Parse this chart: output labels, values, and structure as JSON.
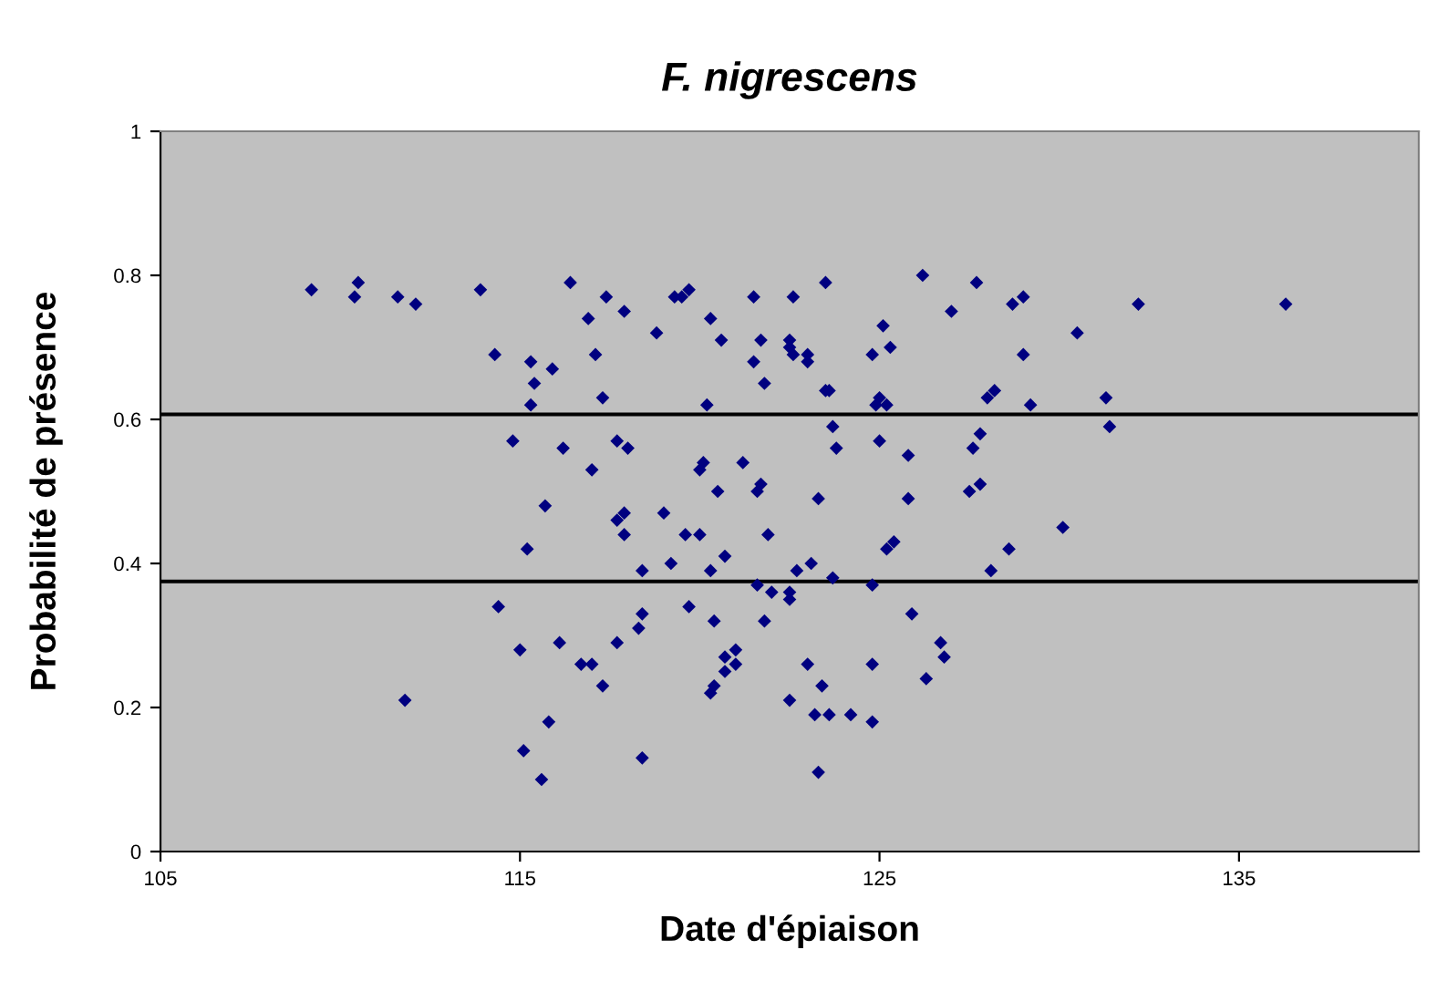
{
  "chart_data": {
    "type": "scatter",
    "title": "F. nigrescens",
    "xlabel": "Date d'épiaison",
    "ylabel": "Probabilité de présence",
    "xlim": [
      105,
      140
    ],
    "xticks": [
      105,
      115,
      125,
      135
    ],
    "ylim": [
      0,
      1
    ],
    "yticks": [
      0,
      0.2,
      0.4,
      0.6,
      0.8,
      1
    ],
    "grid": false,
    "legend": false,
    "marker": "diamond",
    "ref_lines": [
      {
        "axis": "y",
        "value": 0.607,
        "color": "#000000"
      },
      {
        "axis": "y",
        "value": 0.375,
        "color": "#000000"
      }
    ],
    "series": [
      {
        "color": "#000080",
        "x": [
          109.2,
          110.5,
          110.4,
          111.6,
          112.1,
          113.9,
          114.3,
          115.3,
          115.4,
          115.3,
          114.8,
          115.2,
          114.4,
          115.0,
          111.8,
          115.1,
          116.4,
          117.4,
          116.9,
          117.9,
          119.3,
          119.5,
          119.7,
          120.3,
          120.6,
          118.8,
          117.1,
          115.9,
          117.3,
          120.2,
          116.2,
          117.7,
          118.0,
          117.0,
          120.1,
          120.0,
          121.2,
          120.5,
          115.7,
          117.7,
          117.9,
          117.9,
          119.0,
          119.6,
          120.0,
          118.4,
          119.2,
          120.3,
          120.7,
          116.1,
          118.4,
          118.3,
          119.7,
          120.4,
          117.7,
          116.7,
          117.0,
          117.3,
          121.0,
          120.7,
          121.0,
          120.7,
          120.4,
          120.3,
          115.8,
          118.4,
          115.6,
          121.5,
          122.6,
          123.5,
          126.2,
          127.0,
          125.1,
          121.7,
          122.5,
          122.5,
          122.6,
          123.0,
          123.0,
          121.5,
          124.8,
          125.3,
          121.8,
          123.5,
          123.6,
          124.9,
          125.0,
          125.2,
          123.7,
          123.8,
          125.0,
          125.8,
          121.6,
          121.7,
          123.3,
          125.8,
          121.9,
          125.2,
          125.4,
          122.7,
          123.1,
          123.7,
          121.6,
          122.0,
          122.5,
          122.5,
          124.8,
          121.8,
          125.9,
          126.7,
          126.8,
          123.0,
          124.8,
          123.4,
          126.3,
          122.5,
          123.2,
          123.6,
          124.2,
          124.8,
          123.3,
          127.7,
          128.7,
          129.0,
          132.2,
          136.3,
          130.5,
          129.0,
          128.2,
          128.0,
          129.2,
          131.3,
          131.4,
          127.8,
          127.6,
          127.5,
          127.8,
          130.1,
          128.6,
          128.1
        ],
        "values": [
          0.78,
          0.79,
          0.77,
          0.77,
          0.76,
          0.78,
          0.69,
          0.68,
          0.65,
          0.62,
          0.57,
          0.42,
          0.34,
          0.28,
          0.21,
          0.14,
          0.79,
          0.77,
          0.74,
          0.75,
          0.77,
          0.77,
          0.78,
          0.74,
          0.71,
          0.72,
          0.69,
          0.67,
          0.63,
          0.62,
          0.56,
          0.57,
          0.56,
          0.53,
          0.54,
          0.53,
          0.54,
          0.5,
          0.48,
          0.46,
          0.47,
          0.44,
          0.47,
          0.44,
          0.44,
          0.39,
          0.4,
          0.39,
          0.41,
          0.29,
          0.33,
          0.31,
          0.34,
          0.32,
          0.29,
          0.26,
          0.26,
          0.23,
          0.28,
          0.27,
          0.26,
          0.25,
          0.23,
          0.22,
          0.18,
          0.13,
          0.1,
          0.77,
          0.77,
          0.79,
          0.8,
          0.75,
          0.73,
          0.71,
          0.71,
          0.7,
          0.69,
          0.69,
          0.68,
          0.68,
          0.69,
          0.7,
          0.65,
          0.64,
          0.64,
          0.62,
          0.63,
          0.62,
          0.59,
          0.56,
          0.57,
          0.55,
          0.5,
          0.51,
          0.49,
          0.49,
          0.44,
          0.42,
          0.43,
          0.39,
          0.4,
          0.38,
          0.37,
          0.36,
          0.36,
          0.35,
          0.37,
          0.32,
          0.33,
          0.29,
          0.27,
          0.26,
          0.26,
          0.23,
          0.24,
          0.21,
          0.19,
          0.19,
          0.19,
          0.18,
          0.11,
          0.79,
          0.76,
          0.77,
          0.76,
          0.76,
          0.72,
          0.69,
          0.64,
          0.63,
          0.62,
          0.63,
          0.59,
          0.58,
          0.56,
          0.5,
          0.51,
          0.45,
          0.42,
          0.39
        ]
      }
    ]
  }
}
